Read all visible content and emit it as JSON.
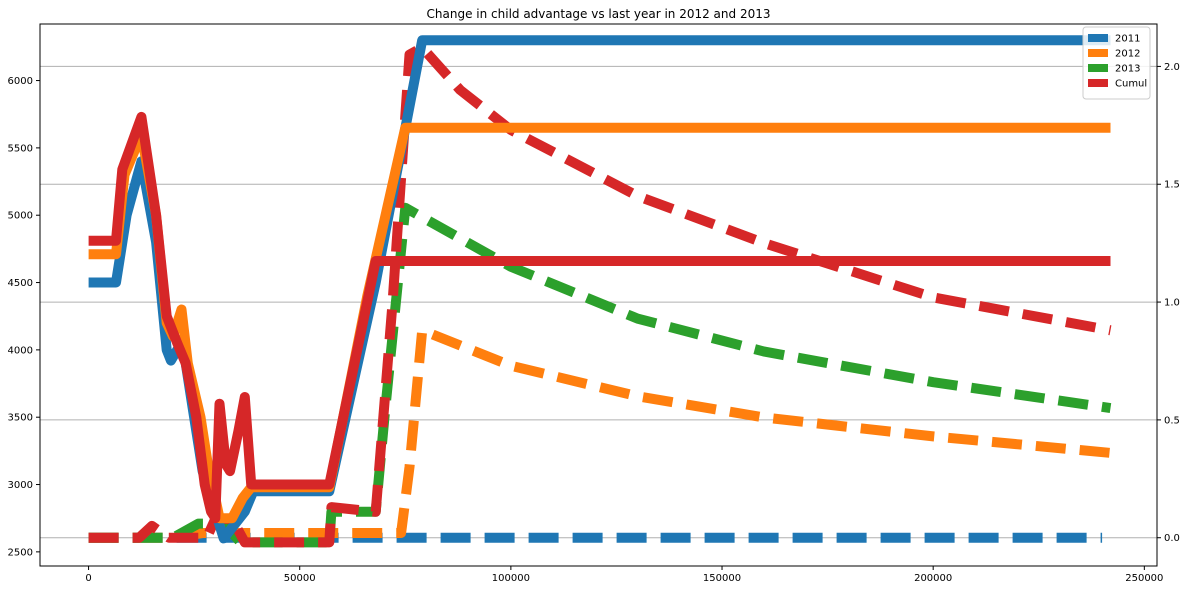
{
  "chart_data": {
    "type": "line",
    "title": "Change in child advantage vs last year in 2012 and 2013",
    "xlabel": "",
    "ylabel": "",
    "y2label": "",
    "xlim": [
      -11500,
      253000
    ],
    "ylim": [
      2395,
      6420
    ],
    "y2lim": [
      -0.12,
      2.18
    ],
    "x_ticks": [
      0,
      50000,
      100000,
      150000,
      200000,
      250000
    ],
    "y_ticks": [
      2500,
      3000,
      3500,
      4000,
      4500,
      5000,
      5500,
      6000
    ],
    "y2_ticks": [
      0.0,
      0.5,
      1.0,
      1.5,
      2.0
    ],
    "y2_tick_labels": [
      "0.0",
      "0.5",
      "1.0",
      "1.5",
      "2.0"
    ],
    "grid": "horizontal lines at right-axis ticks",
    "legend": {
      "placement": "top-right",
      "entries": [
        "2011",
        "2012",
        "2013",
        "Cumul"
      ]
    },
    "colors": {
      "2011": "#1f77b4",
      "2012": "#ff7f0e",
      "2013": "#2ca02c",
      "Cumul": "#d62728"
    },
    "series": [
      {
        "name": "2011",
        "axis": "left",
        "style": "solid",
        "points": [
          [
            0,
            4500
          ],
          [
            6500,
            4500
          ],
          [
            9000,
            5000
          ],
          [
            12500,
            5400
          ],
          [
            16000,
            4800
          ],
          [
            18500,
            4000
          ],
          [
            19500,
            3920
          ],
          [
            21000,
            4000
          ],
          [
            22500,
            4000
          ],
          [
            24500,
            3600
          ],
          [
            27000,
            3100
          ],
          [
            29000,
            2900
          ],
          [
            31000,
            2700
          ],
          [
            32000,
            2600
          ],
          [
            34500,
            2700
          ],
          [
            37000,
            2800
          ],
          [
            39000,
            2950
          ],
          [
            57000,
            2950
          ],
          [
            68000,
            4500
          ],
          [
            79000,
            6300
          ],
          [
            242000,
            6300
          ]
        ]
      },
      {
        "name": "2012",
        "axis": "left",
        "style": "solid",
        "points": [
          [
            0,
            4710
          ],
          [
            6500,
            4710
          ],
          [
            8500,
            5300
          ],
          [
            12500,
            5600
          ],
          [
            16000,
            5000
          ],
          [
            18500,
            4200
          ],
          [
            20000,
            4100
          ],
          [
            22000,
            4300
          ],
          [
            23500,
            3900
          ],
          [
            26500,
            3500
          ],
          [
            28500,
            3100
          ],
          [
            30000,
            2900
          ],
          [
            31000,
            2750
          ],
          [
            34000,
            2750
          ],
          [
            36500,
            2900
          ],
          [
            38500,
            2980
          ],
          [
            57000,
            2980
          ],
          [
            66000,
            4400
          ],
          [
            75000,
            5650
          ],
          [
            242000,
            5650
          ]
        ]
      },
      {
        "name": "Cumul",
        "axis": "left",
        "style": "solid",
        "points": [
          [
            0,
            4810
          ],
          [
            6500,
            4810
          ],
          [
            8000,
            5340
          ],
          [
            12500,
            5730
          ],
          [
            16000,
            5000
          ],
          [
            18500,
            4250
          ],
          [
            21000,
            4050
          ],
          [
            23000,
            3900
          ],
          [
            25500,
            3500
          ],
          [
            27500,
            3000
          ],
          [
            29000,
            2800
          ],
          [
            30000,
            2750
          ],
          [
            31000,
            3600
          ],
          [
            32500,
            3150
          ],
          [
            33500,
            3100
          ],
          [
            35500,
            3400
          ],
          [
            37000,
            3650
          ],
          [
            38500,
            3000
          ],
          [
            57000,
            3000
          ],
          [
            68000,
            4660
          ],
          [
            242000,
            4660
          ]
        ]
      },
      {
        "name": "2011",
        "axis": "right",
        "style": "dashed",
        "points": [
          [
            0,
            0.0
          ],
          [
            240000,
            0.0
          ]
        ]
      },
      {
        "name": "2012",
        "axis": "right",
        "style": "dashed",
        "points": [
          [
            0,
            0.0
          ],
          [
            20000,
            0.0
          ],
          [
            27000,
            0.02
          ],
          [
            57000,
            0.02
          ],
          [
            74000,
            0.02
          ],
          [
            76000,
            0.3
          ],
          [
            79000,
            0.88
          ],
          [
            100000,
            0.73
          ],
          [
            130000,
            0.6
          ],
          [
            160000,
            0.51
          ],
          [
            200000,
            0.43
          ],
          [
            242000,
            0.36
          ]
        ]
      },
      {
        "name": "2013",
        "axis": "right",
        "style": "dashed",
        "points": [
          [
            0,
            0.0
          ],
          [
            20000,
            0.0
          ],
          [
            26000,
            0.06
          ],
          [
            32000,
            0.06
          ],
          [
            36000,
            -0.02
          ],
          [
            57000,
            -0.02
          ],
          [
            57500,
            0.11
          ],
          [
            68000,
            0.11
          ],
          [
            70000,
            0.5
          ],
          [
            75000,
            1.4
          ],
          [
            100000,
            1.15
          ],
          [
            130000,
            0.93
          ],
          [
            160000,
            0.79
          ],
          [
            200000,
            0.66
          ],
          [
            242000,
            0.55
          ]
        ]
      },
      {
        "name": "Cumul",
        "axis": "right",
        "style": "dashed",
        "points": [
          [
            0,
            0.0
          ],
          [
            12000,
            0.0
          ],
          [
            15000,
            0.05
          ],
          [
            19000,
            0.0
          ],
          [
            28000,
            0.0
          ],
          [
            30000,
            0.08
          ],
          [
            34000,
            0.08
          ],
          [
            37000,
            -0.02
          ],
          [
            57000,
            -0.02
          ],
          [
            57500,
            0.13
          ],
          [
            68000,
            0.11
          ],
          [
            72000,
            1.0
          ],
          [
            76000,
            2.05
          ],
          [
            79000,
            2.08
          ],
          [
            88000,
            1.9
          ],
          [
            100000,
            1.73
          ],
          [
            130000,
            1.45
          ],
          [
            160000,
            1.25
          ],
          [
            200000,
            1.02
          ],
          [
            242000,
            0.88
          ]
        ]
      }
    ]
  }
}
